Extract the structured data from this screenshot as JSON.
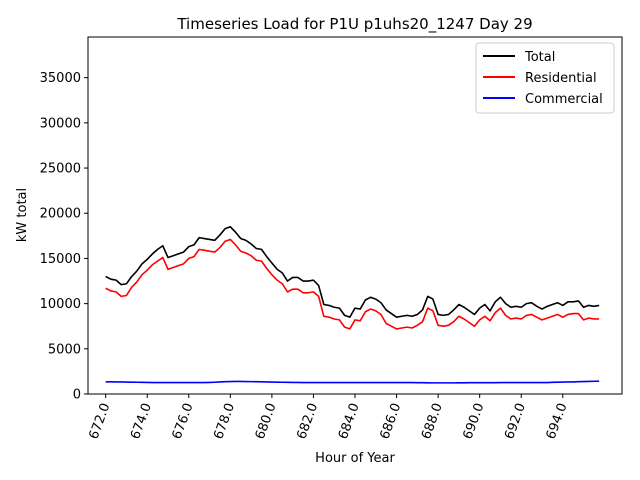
{
  "chart_data": {
    "type": "line",
    "title": "Timeseries Load for P1U p1uhs20_1247  Day 29",
    "xlabel": "Hour of Year",
    "ylabel": "kW total",
    "xlim": [
      671.15,
      696.85
    ],
    "ylim": [
      0,
      39500
    ],
    "xticks": [
      672,
      674,
      676,
      678,
      680,
      682,
      684,
      686,
      688,
      690,
      692,
      694
    ],
    "xtick_labels": [
      "672.0",
      "674.0",
      "676.0",
      "678.0",
      "680.0",
      "682.0",
      "684.0",
      "686.0",
      "688.0",
      "690.0",
      "692.0",
      "694.0"
    ],
    "yticks": [
      0,
      5000,
      10000,
      15000,
      20000,
      25000,
      30000,
      35000
    ],
    "ytick_labels": [
      "0",
      "5000",
      "10000",
      "15000",
      "20000",
      "25000",
      "30000",
      "35000"
    ],
    "legend_position": "top-right",
    "grid": false,
    "x_start": 672.0,
    "x_step": 0.25,
    "series": [
      {
        "name": "Total",
        "color": "#000000",
        "values": [
          13000,
          12700,
          12600,
          12100,
          12200,
          13000,
          13600,
          14400,
          14900,
          15500,
          16000,
          16400,
          15100,
          15300,
          15500,
          15700,
          16300,
          16500,
          17300,
          17200,
          17100,
          17000,
          17600,
          18300,
          18500,
          17900,
          17200,
          17000,
          16600,
          16100,
          16000,
          15200,
          14500,
          13800,
          13400,
          12500,
          12900,
          12900,
          12500,
          12500,
          12600,
          12000,
          9900,
          9800,
          9600,
          9500,
          8700,
          8500,
          9500,
          9400,
          10400,
          10700,
          10500,
          10100,
          9300,
          8900,
          8500,
          8600,
          8700,
          8600,
          8800,
          9300,
          10800,
          10500,
          8800,
          8700,
          8800,
          9300,
          9900,
          9600,
          9200,
          8800,
          9500,
          9900,
          9200,
          10200,
          10700,
          10000,
          9600,
          9700,
          9600,
          10000,
          10100,
          9700,
          9400,
          9700,
          9900,
          10100,
          9800,
          10200,
          10200,
          10300,
          9600,
          9800,
          9700,
          9800
        ]
      },
      {
        "name": "Residential",
        "color": "#ff0000",
        "values": [
          11700,
          11400,
          11300,
          10800,
          10900,
          11800,
          12400,
          13200,
          13700,
          14300,
          14700,
          15100,
          13800,
          14000,
          14200,
          14400,
          15000,
          15200,
          16000,
          15900,
          15800,
          15700,
          16200,
          16900,
          17100,
          16500,
          15800,
          15600,
          15300,
          14800,
          14700,
          13900,
          13200,
          12600,
          12200,
          11300,
          11600,
          11600,
          11200,
          11200,
          11300,
          10800,
          8600,
          8500,
          8300,
          8200,
          7400,
          7200,
          8200,
          8100,
          9100,
          9400,
          9200,
          8800,
          7800,
          7500,
          7200,
          7300,
          7400,
          7300,
          7600,
          8000,
          9500,
          9200,
          7600,
          7500,
          7600,
          8000,
          8600,
          8300,
          7900,
          7500,
          8200,
          8600,
          8100,
          9000,
          9500,
          8700,
          8300,
          8400,
          8300,
          8700,
          8800,
          8500,
          8200,
          8400,
          8600,
          8800,
          8500,
          8800,
          8900,
          8900,
          8200,
          8400,
          8300,
          8300
        ]
      },
      {
        "name": "Commercial",
        "color": "#0000ff",
        "values": [
          1350,
          1350,
          1340,
          1330,
          1320,
          1310,
          1300,
          1290,
          1280,
          1270,
          1260,
          1260,
          1260,
          1260,
          1260,
          1260,
          1260,
          1260,
          1260,
          1270,
          1280,
          1300,
          1330,
          1360,
          1380,
          1390,
          1390,
          1380,
          1370,
          1360,
          1350,
          1340,
          1320,
          1310,
          1300,
          1290,
          1280,
          1280,
          1270,
          1270,
          1270,
          1270,
          1270,
          1270,
          1270,
          1270,
          1270,
          1270,
          1270,
          1270,
          1270,
          1270,
          1270,
          1270,
          1270,
          1260,
          1260,
          1260,
          1260,
          1260,
          1250,
          1250,
          1240,
          1230,
          1230,
          1230,
          1230,
          1230,
          1240,
          1240,
          1250,
          1250,
          1250,
          1250,
          1250,
          1250,
          1260,
          1260,
          1260,
          1260,
          1260,
          1260,
          1260,
          1260,
          1260,
          1270,
          1290,
          1310,
          1320,
          1330,
          1340,
          1360,
          1380,
          1390,
          1410,
          1420
        ]
      }
    ]
  }
}
